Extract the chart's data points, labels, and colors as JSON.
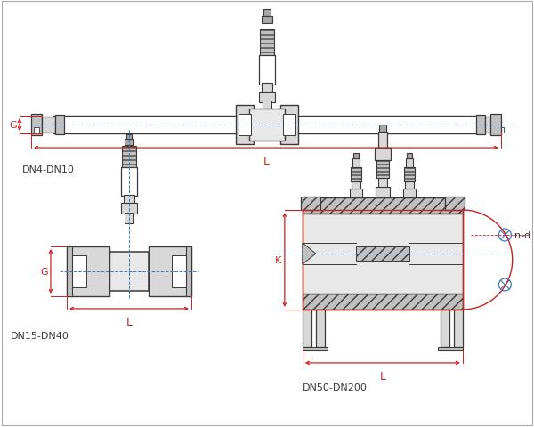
{
  "bg_color": "#ffffff",
  "line_color": "#3a3a3a",
  "red_color": "#cc2222",
  "blue_color": "#4477bb",
  "gray1": "#d8d8d8",
  "gray2": "#c0c0c0",
  "gray3": "#a8a8a8",
  "gray4": "#e8e8e8",
  "figsize": [
    6.0,
    4.81
  ],
  "dpi": 100,
  "labels": {
    "dn4_dn10": "DN4-DN10",
    "dn15_dn40": "DN15-DN40",
    "dn50_dn200": "DN50-DN200",
    "L": "L",
    "G": "G",
    "K": "K",
    "nd": "n-d"
  }
}
